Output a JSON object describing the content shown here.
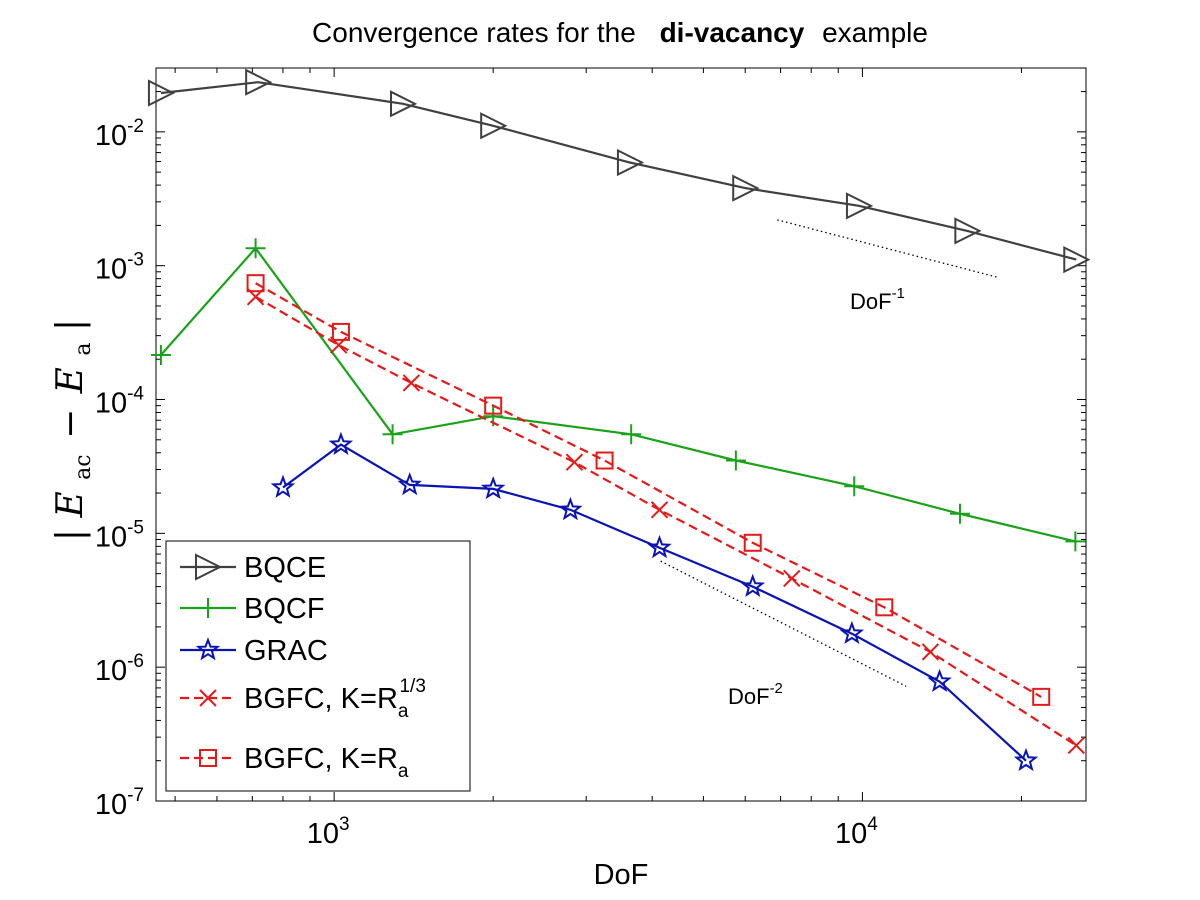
{
  "chart_data": {
    "type": "line",
    "title": {
      "prefix": "Convergence rates for the",
      "bold": "di-vacancy",
      "suffix": "example"
    },
    "xlabel": "DoF",
    "ylabel": {
      "abs": "|",
      "E": "E",
      "ac": "ac",
      "minus": "−",
      "a": "a"
    },
    "xscale": "log",
    "yscale": "log",
    "xlim": [
      460,
      26500
    ],
    "ylim": [
      1e-07,
      0.03
    ],
    "x_ticks": [
      {
        "value": 1000,
        "base": "10",
        "exp": "3"
      },
      {
        "value": 10000,
        "base": "10",
        "exp": "4"
      }
    ],
    "y_ticks": [
      {
        "value": 1e-07,
        "base": "10",
        "exp": "-7"
      },
      {
        "value": 1e-06,
        "base": "10",
        "exp": "-6"
      },
      {
        "value": 1e-05,
        "base": "10",
        "exp": "-5"
      },
      {
        "value": 0.0001,
        "base": "10",
        "exp": "-4"
      },
      {
        "value": 0.001,
        "base": "10",
        "exp": "-3"
      },
      {
        "value": 0.01,
        "base": "10",
        "exp": "-2"
      }
    ],
    "grid": false,
    "legend_position": "bottom-left",
    "series": [
      {
        "name": "BQCE",
        "color": "#404040",
        "marker": "triangle-right",
        "dash": "solid",
        "points": [
          [
            470,
            0.0195
          ],
          [
            718,
            0.0235
          ],
          [
            1350,
            0.0162
          ],
          [
            2000,
            0.0111
          ],
          [
            3630,
            0.0059
          ],
          [
            6000,
            0.0038
          ],
          [
            9850,
            0.0028
          ],
          [
            15800,
            0.00182
          ],
          [
            25400,
            0.00111
          ]
        ]
      },
      {
        "name": "BQCF",
        "color": "#1aa31a",
        "marker": "plus",
        "dash": "solid",
        "points": [
          [
            470,
            0.000215
          ],
          [
            710,
            0.00135
          ],
          [
            1290,
            5.5e-05
          ],
          [
            2000,
            7.5e-05
          ],
          [
            3650,
            5.5e-05
          ],
          [
            5760,
            3.5e-05
          ],
          [
            9650,
            2.25e-05
          ],
          [
            15300,
            1.4e-05
          ],
          [
            25300,
            8.7e-06
          ]
        ]
      },
      {
        "name": "GRAC",
        "color": "#0a14b4",
        "marker": "star",
        "dash": "solid",
        "points": [
          [
            800,
            2.2e-05
          ],
          [
            1030,
            4.6e-05
          ],
          [
            1390,
            2.3e-05
          ],
          [
            2000,
            2.15e-05
          ],
          [
            2800,
            1.5e-05
          ],
          [
            4130,
            7.8e-06
          ],
          [
            6200,
            4e-06
          ],
          [
            9550,
            1.78e-06
          ],
          [
            14000,
            7.8e-07
          ],
          [
            20400,
            2e-07
          ]
        ]
      },
      {
        "name": "BGFC, K=Ra^1/3",
        "legend": {
          "text": "BGFC, K=R",
          "sub": "a",
          "sup": "1/3"
        },
        "color": "#e61919",
        "marker": "x",
        "dash": "dashed",
        "points": [
          [
            710,
            0.000585
          ],
          [
            1020,
            0.000255
          ],
          [
            1400,
            0.000133
          ],
          [
            2850,
            3.4e-05
          ],
          [
            4130,
            1.5e-05
          ],
          [
            7350,
            4.6e-06
          ],
          [
            13450,
            1.3e-06
          ],
          [
            25400,
            2.6e-07
          ]
        ]
      },
      {
        "name": "BGFC, K=Ra",
        "legend": {
          "text": "BGFC, K=R",
          "sub": "a",
          "sup": ""
        },
        "color": "#e61919",
        "marker": "square",
        "dash": "dashed",
        "points": [
          [
            710,
            0.00074
          ],
          [
            1030,
            0.00032
          ],
          [
            2000,
            9e-05
          ],
          [
            3250,
            3.5e-05
          ],
          [
            6200,
            8.5e-06
          ],
          [
            11000,
            2.8e-06
          ],
          [
            21800,
            6e-07
          ]
        ]
      }
    ],
    "reference_lines": [
      {
        "label_base": "DoF",
        "label_exp": "-1",
        "slope": -1,
        "points": [
          [
            6900,
            0.0022
          ],
          [
            18000,
            0.00082
          ]
        ]
      },
      {
        "label_base": "DoF",
        "label_exp": "-2",
        "slope": -2,
        "points": [
          [
            4150,
            6.2e-06
          ],
          [
            12100,
            7.2e-07
          ]
        ]
      }
    ]
  }
}
